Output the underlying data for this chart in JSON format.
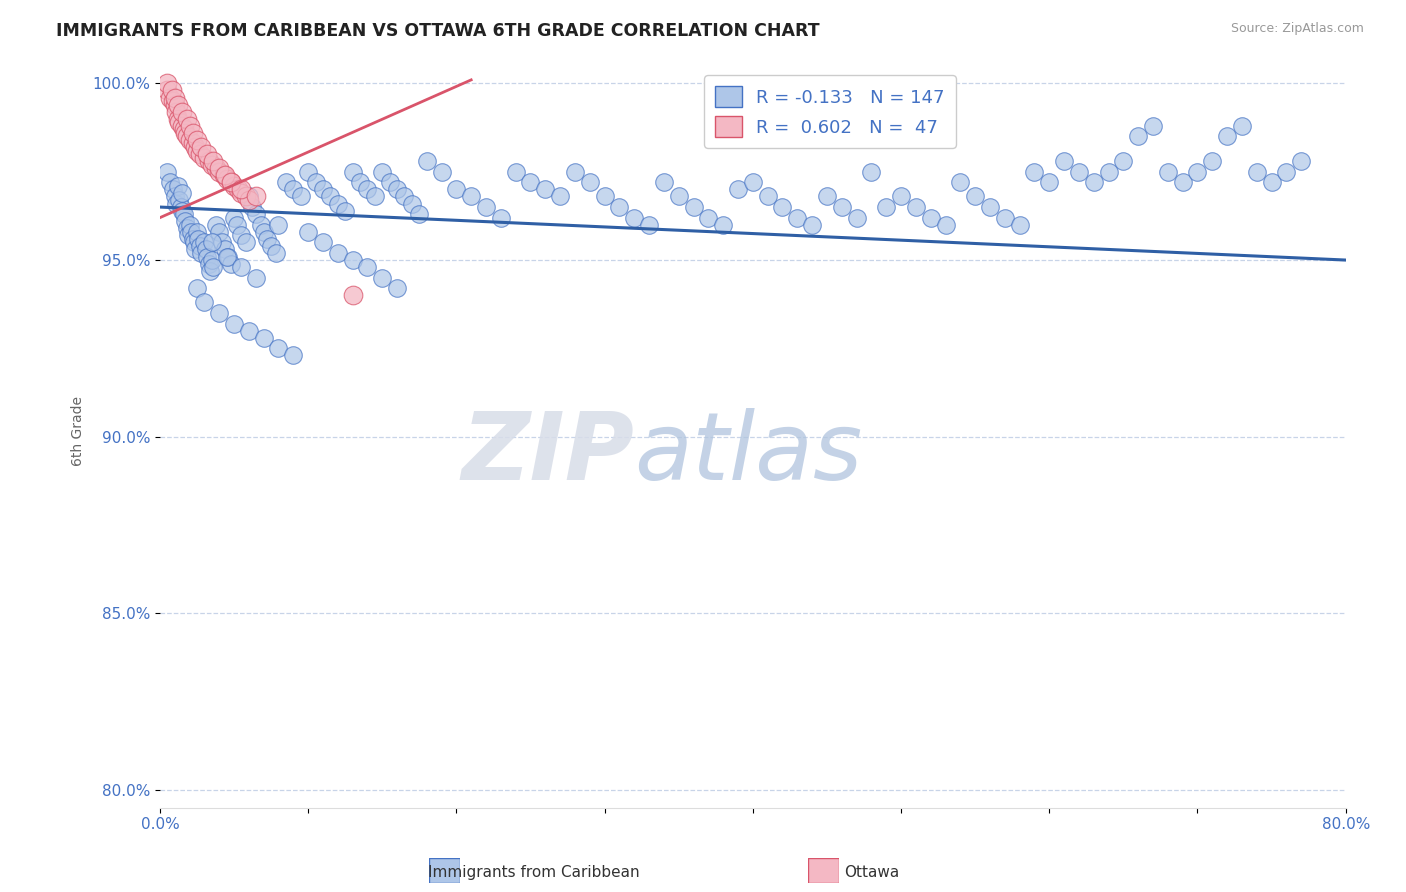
{
  "title": "IMMIGRANTS FROM CARIBBEAN VS OTTAWA 6TH GRADE CORRELATION CHART",
  "source": "Source: ZipAtlas.com",
  "xlabel_bottom": "Immigrants from Caribbean",
  "xlabel_bottom2": "Ottawa",
  "ylabel": "6th Grade",
  "xmin": 0.0,
  "xmax": 0.8,
  "ymin": 0.795,
  "ymax": 1.008,
  "yticks": [
    0.8,
    0.85,
    0.9,
    0.95,
    1.0
  ],
  "ytick_labels": [
    "80.0%",
    "85.0%",
    "90.0%",
    "95.0%",
    "100.0%"
  ],
  "xticks": [
    0.0,
    0.1,
    0.2,
    0.3,
    0.4,
    0.5,
    0.6,
    0.7,
    0.8
  ],
  "xtick_labels": [
    "0.0%",
    "",
    "",
    "",
    "",
    "",
    "",
    "",
    "80.0%"
  ],
  "blue_R": -0.133,
  "blue_N": 147,
  "pink_R": 0.602,
  "pink_N": 47,
  "blue_color": "#aec6e8",
  "blue_edge_color": "#4472c4",
  "pink_color": "#f4b8c4",
  "pink_edge_color": "#d9546a",
  "blue_line_color": "#2f5fa5",
  "pink_line_color": "#d9546a",
  "watermark_zip": "ZIP",
  "watermark_atlas": "atlas",
  "title_color": "#222222",
  "axis_tick_color": "#4472c4",
  "grid_color": "#c8d4e8",
  "legend_label_color": "#4472c4",
  "blue_trend_x0": 0.0,
  "blue_trend_x1": 0.8,
  "blue_trend_y0": 0.965,
  "blue_trend_y1": 0.95,
  "pink_trend_x0": 0.0,
  "pink_trend_x1": 0.21,
  "pink_trend_y0": 0.962,
  "pink_trend_y1": 1.001,
  "blue_scatter_x": [
    0.005,
    0.007,
    0.009,
    0.01,
    0.011,
    0.012,
    0.013,
    0.014,
    0.015,
    0.015,
    0.016,
    0.017,
    0.018,
    0.019,
    0.02,
    0.021,
    0.022,
    0.023,
    0.024,
    0.025,
    0.026,
    0.027,
    0.028,
    0.03,
    0.031,
    0.032,
    0.033,
    0.034,
    0.035,
    0.036,
    0.038,
    0.04,
    0.042,
    0.044,
    0.046,
    0.048,
    0.05,
    0.052,
    0.055,
    0.058,
    0.06,
    0.062,
    0.065,
    0.068,
    0.07,
    0.072,
    0.075,
    0.078,
    0.08,
    0.085,
    0.09,
    0.095,
    0.1,
    0.105,
    0.11,
    0.115,
    0.12,
    0.125,
    0.13,
    0.135,
    0.14,
    0.145,
    0.15,
    0.155,
    0.16,
    0.165,
    0.17,
    0.175,
    0.18,
    0.19,
    0.2,
    0.21,
    0.22,
    0.23,
    0.24,
    0.25,
    0.26,
    0.27,
    0.28,
    0.29,
    0.3,
    0.31,
    0.32,
    0.33,
    0.34,
    0.35,
    0.36,
    0.37,
    0.38,
    0.39,
    0.4,
    0.41,
    0.42,
    0.43,
    0.44,
    0.45,
    0.46,
    0.47,
    0.48,
    0.49,
    0.5,
    0.51,
    0.52,
    0.53,
    0.54,
    0.55,
    0.56,
    0.57,
    0.58,
    0.59,
    0.6,
    0.61,
    0.62,
    0.63,
    0.64,
    0.65,
    0.66,
    0.67,
    0.68,
    0.69,
    0.7,
    0.71,
    0.72,
    0.73,
    0.74,
    0.75,
    0.76,
    0.77,
    0.025,
    0.03,
    0.04,
    0.05,
    0.06,
    0.07,
    0.08,
    0.09,
    0.1,
    0.11,
    0.12,
    0.13,
    0.14,
    0.15,
    0.16,
    0.035,
    0.045,
    0.055,
    0.065
  ],
  "blue_scatter_y": [
    0.975,
    0.972,
    0.97,
    0.968,
    0.966,
    0.971,
    0.967,
    0.965,
    0.969,
    0.964,
    0.963,
    0.961,
    0.959,
    0.957,
    0.96,
    0.958,
    0.956,
    0.955,
    0.953,
    0.958,
    0.956,
    0.954,
    0.952,
    0.955,
    0.953,
    0.951,
    0.949,
    0.947,
    0.95,
    0.948,
    0.96,
    0.958,
    0.955,
    0.953,
    0.951,
    0.949,
    0.962,
    0.96,
    0.957,
    0.955,
    0.968,
    0.965,
    0.963,
    0.96,
    0.958,
    0.956,
    0.954,
    0.952,
    0.96,
    0.972,
    0.97,
    0.968,
    0.975,
    0.972,
    0.97,
    0.968,
    0.966,
    0.964,
    0.975,
    0.972,
    0.97,
    0.968,
    0.975,
    0.972,
    0.97,
    0.968,
    0.966,
    0.963,
    0.978,
    0.975,
    0.97,
    0.968,
    0.965,
    0.962,
    0.975,
    0.972,
    0.97,
    0.968,
    0.975,
    0.972,
    0.968,
    0.965,
    0.962,
    0.96,
    0.972,
    0.968,
    0.965,
    0.962,
    0.96,
    0.97,
    0.972,
    0.968,
    0.965,
    0.962,
    0.96,
    0.968,
    0.965,
    0.962,
    0.975,
    0.965,
    0.968,
    0.965,
    0.962,
    0.96,
    0.972,
    0.968,
    0.965,
    0.962,
    0.96,
    0.975,
    0.972,
    0.978,
    0.975,
    0.972,
    0.975,
    0.978,
    0.985,
    0.988,
    0.975,
    0.972,
    0.975,
    0.978,
    0.985,
    0.988,
    0.975,
    0.972,
    0.975,
    0.978,
    0.942,
    0.938,
    0.935,
    0.932,
    0.93,
    0.928,
    0.925,
    0.923,
    0.958,
    0.955,
    0.952,
    0.95,
    0.948,
    0.945,
    0.942,
    0.955,
    0.951,
    0.948,
    0.945
  ],
  "pink_scatter_x": [
    0.005,
    0.007,
    0.009,
    0.01,
    0.011,
    0.012,
    0.013,
    0.015,
    0.016,
    0.017,
    0.018,
    0.02,
    0.022,
    0.024,
    0.025,
    0.027,
    0.03,
    0.033,
    0.035,
    0.038,
    0.04,
    0.043,
    0.045,
    0.048,
    0.05,
    0.053,
    0.055,
    0.058,
    0.06,
    0.005,
    0.008,
    0.01,
    0.012,
    0.015,
    0.018,
    0.02,
    0.022,
    0.025,
    0.028,
    0.032,
    0.036,
    0.04,
    0.044,
    0.048,
    0.055,
    0.065,
    0.13
  ],
  "pink_scatter_y": [
    0.998,
    0.996,
    0.995,
    0.994,
    0.992,
    0.99,
    0.989,
    0.988,
    0.987,
    0.986,
    0.985,
    0.984,
    0.983,
    0.982,
    0.981,
    0.98,
    0.979,
    0.978,
    0.977,
    0.976,
    0.975,
    0.974,
    0.973,
    0.972,
    0.971,
    0.97,
    0.969,
    0.968,
    0.967,
    1.0,
    0.998,
    0.996,
    0.994,
    0.992,
    0.99,
    0.988,
    0.986,
    0.984,
    0.982,
    0.98,
    0.978,
    0.976,
    0.974,
    0.972,
    0.97,
    0.968,
    0.94
  ]
}
